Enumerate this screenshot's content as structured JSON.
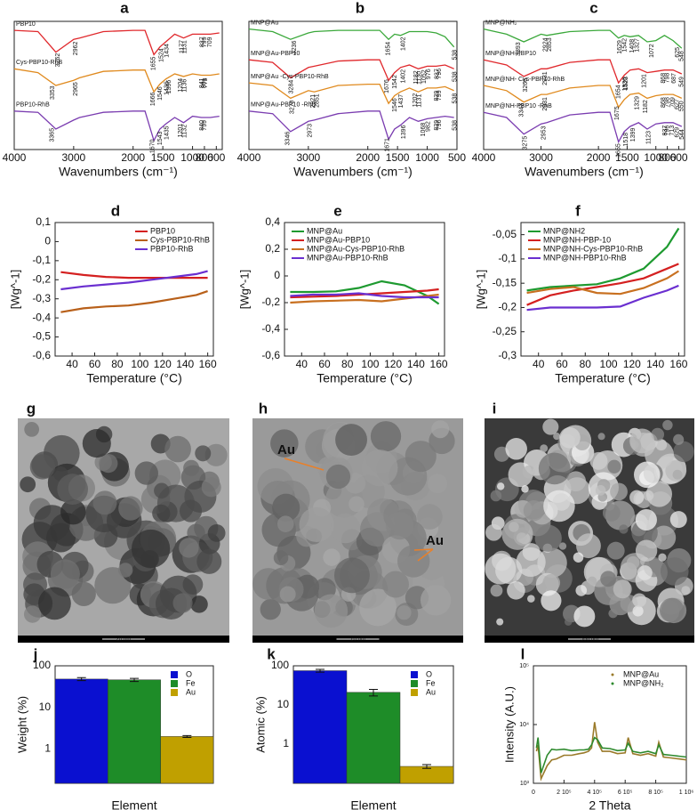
{
  "chart_data": [
    {
      "type": "spectrum",
      "label": "a",
      "xlabel": "Wavenumbers (cm⁻¹)",
      "xlim": [
        4000,
        500
      ],
      "ylim": [
        0,
        10
      ],
      "xticks": [
        4000,
        3000,
        2000,
        1500,
        1000,
        800,
        600
      ],
      "x": [
        4000,
        3600,
        3300,
        3000,
        2900,
        2500,
        2000,
        1800,
        1650,
        1550,
        1450,
        1300,
        1150,
        1000,
        850,
        700,
        550
      ],
      "series": [
        {
          "name": "PBP10",
          "color": "#e0282c",
          "values": [
            9.3,
            9.2,
            7.6,
            8.6,
            8.7,
            9.2,
            9.3,
            9.3,
            7.4,
            8.0,
            8.4,
            9.0,
            8.7,
            9.0,
            9.0,
            9.0,
            9.1
          ],
          "peaks": [
            3262,
            2962,
            1655,
            1524,
            1434,
            1177,
            1131,
            837,
            799,
            709
          ]
        },
        {
          "name": "Cys-PBP10-RhB",
          "color": "#e08a1e",
          "values": [
            6.3,
            6.0,
            5.0,
            5.4,
            5.6,
            6.1,
            6.2,
            6.2,
            4.5,
            5.1,
            5.5,
            5.9,
            5.7,
            5.9,
            5.8,
            5.8,
            5.9
          ],
          "peaks": [
            3353,
            2965,
            1666,
            1546,
            1436,
            1396,
            1204,
            1136,
            841,
            801,
            779
          ]
        },
        {
          "name": "PBP10-RhB",
          "color": "#7a3cb0",
          "values": [
            3.0,
            2.9,
            1.6,
            2.3,
            2.5,
            2.9,
            3.0,
            3.0,
            0.7,
            1.6,
            2.0,
            2.5,
            2.1,
            2.6,
            2.5,
            2.5,
            2.6
          ],
          "peaks": [
            3365,
            1670,
            1543,
            1435,
            1201,
            1132,
            840,
            799
          ]
        }
      ]
    },
    {
      "type": "spectrum",
      "label": "b",
      "xlabel": "Wavenumbers (cm⁻¹)",
      "xlim": [
        4000,
        500
      ],
      "ylim": [
        0,
        10
      ],
      "xticks": [
        4000,
        3000,
        2000,
        1500,
        1000,
        500
      ],
      "x": [
        4000,
        3600,
        3300,
        3000,
        2900,
        2500,
        2000,
        1800,
        1650,
        1550,
        1450,
        1300,
        1150,
        1000,
        850,
        700,
        550
      ],
      "series": [
        {
          "name": "MNP@Au",
          "color": "#3aa83a",
          "values": [
            9.4,
            9.2,
            8.6,
            9.1,
            9.2,
            9.3,
            9.3,
            9.3,
            8.6,
            9.0,
            8.9,
            9.2,
            9.2,
            9.2,
            9.1,
            8.8,
            8.0
          ],
          "peaks": [
            3236,
            1654,
            1402,
            538
          ]
        },
        {
          "name": "MNP@Au-PBP10",
          "color": "#e0282c",
          "values": [
            7.0,
            6.8,
            5.6,
            6.4,
            6.5,
            6.9,
            7.0,
            7.0,
            5.4,
            6.0,
            6.4,
            6.6,
            6.3,
            6.5,
            6.5,
            6.6,
            6.3
          ],
          "peaks": [
            3284,
            1676,
            1542,
            1402,
            1182,
            1130,
            1052,
            976,
            837,
            796,
            538
          ]
        },
        {
          "name": "MNP@Au -Cys-PBP10-RhB",
          "color": "#e08a1e",
          "values": [
            5.2,
            5.0,
            4.0,
            4.6,
            4.5,
            5.0,
            5.1,
            5.1,
            3.6,
            4.2,
            4.5,
            4.8,
            4.5,
            4.8,
            4.8,
            4.9,
            4.6
          ],
          "peaks": [
            3270,
            2921,
            2851,
            1546,
            1437,
            1202,
            1131,
            839,
            799,
            538
          ]
        },
        {
          "name": "MNP@Au-PBP10 -RhB",
          "color": "#7a3cb0",
          "values": [
            3.0,
            2.8,
            1.4,
            2.2,
            2.3,
            2.8,
            3.0,
            3.0,
            0.8,
            1.6,
            1.9,
            2.5,
            2.2,
            2.4,
            2.5,
            2.6,
            2.5
          ],
          "peaks": [
            3346,
            2973,
            1671,
            1396,
            1068,
            982,
            839,
            796,
            538
          ]
        }
      ]
    },
    {
      "type": "spectrum",
      "label": "c",
      "xlabel": "Wavenumbers (cm⁻¹)",
      "xlim": [
        4000,
        500
      ],
      "ylim": [
        0,
        10
      ],
      "xticks": [
        4000,
        3000,
        2000,
        1500,
        1000,
        800,
        600
      ],
      "x": [
        4000,
        3600,
        3300,
        3000,
        2900,
        2500,
        2000,
        1800,
        1650,
        1550,
        1450,
        1300,
        1150,
        1000,
        850,
        700,
        550
      ],
      "series": [
        {
          "name": "MNP@NH₂",
          "color": "#3aa83a",
          "values": [
            9.4,
            9.0,
            8.4,
            9.0,
            8.9,
            9.2,
            9.3,
            9.3,
            8.7,
            8.9,
            8.8,
            8.9,
            8.4,
            8.5,
            8.9,
            8.5,
            7.9
          ],
          "peaks": [
            3393,
            2924,
            2853,
            1629,
            1542,
            1408,
            1327,
            1072,
            625,
            548
          ]
        },
        {
          "name": "MNP@NH-PBP10",
          "color": "#e0282c",
          "values": [
            7.0,
            6.6,
            5.7,
            6.3,
            6.3,
            6.8,
            7.0,
            7.0,
            5.2,
            5.8,
            6.2,
            6.3,
            6.0,
            6.1,
            6.2,
            6.2,
            5.9
          ],
          "peaks": [
            3266,
            2931,
            1654,
            1536,
            1523,
            1201,
            868,
            798,
            687,
            549
          ]
        },
        {
          "name": "MNP@NH- Cys-PBP10-RhB",
          "color": "#e08a1e",
          "values": [
            5.0,
            4.6,
            3.7,
            4.3,
            4.3,
            4.8,
            5.0,
            5.0,
            3.3,
            3.9,
            4.3,
            4.4,
            4.0,
            4.2,
            4.3,
            4.3,
            4.0
          ],
          "peaks": [
            3343,
            2931,
            1675,
            1329,
            1182,
            868,
            798,
            709,
            627,
            550
          ]
        },
        {
          "name": "MNP@NH-PBP10 -RhB",
          "color": "#7a3cb0",
          "values": [
            2.9,
            2.5,
            1.2,
            2.0,
            2.1,
            2.7,
            2.9,
            2.9,
            0.6,
            1.4,
            1.8,
            2.1,
            1.6,
            2.0,
            2.1,
            2.1,
            1.8
          ],
          "peaks": [
            3275,
            2953,
            1655,
            1518,
            1399,
            1123,
            837,
            796,
            713,
            629,
            544
          ]
        }
      ]
    },
    {
      "type": "line",
      "label": "d",
      "xlabel": "Temperature (°C)",
      "ylabel": "[Wg^-1]",
      "legend": "upper right",
      "xlim": [
        25,
        165
      ],
      "ylim": [
        -0.6,
        0.1
      ],
      "xticks": [
        40,
        60,
        80,
        100,
        120,
        140,
        160
      ],
      "yticks": [
        {
          "value": 0.1,
          "label": "0,1"
        },
        0,
        {
          "value": -0.1,
          "label": "-0,1"
        },
        {
          "value": -0.2,
          "label": "-0,2"
        },
        {
          "value": -0.3,
          "label": "-0,3"
        },
        {
          "value": -0.4,
          "label": "-0,4"
        },
        {
          "value": -0.5,
          "label": "-0,5"
        },
        {
          "value": -0.6,
          "label": "-0,6"
        }
      ],
      "x": [
        30,
        50,
        70,
        90,
        110,
        130,
        150,
        160
      ],
      "series": [
        {
          "name": "PBP10",
          "color": "#d42020",
          "values": [
            -0.16,
            -0.175,
            -0.185,
            -0.19,
            -0.19,
            -0.19,
            -0.19,
            -0.19
          ]
        },
        {
          "name": "Cys-PBP10-RhB",
          "color": "#b8601a",
          "values": [
            -0.37,
            -0.35,
            -0.34,
            -0.335,
            -0.32,
            -0.3,
            -0.28,
            -0.26
          ]
        },
        {
          "name": "PBP10-RhB",
          "color": "#6a2fd0",
          "values": [
            -0.25,
            -0.235,
            -0.225,
            -0.215,
            -0.2,
            -0.185,
            -0.17,
            -0.155
          ]
        }
      ]
    },
    {
      "type": "line",
      "label": "e",
      "xlabel": "Temperature (°C)",
      "ylabel": "[Wg^-1]",
      "legend": "upper left",
      "xlim": [
        25,
        165
      ],
      "ylim": [
        -0.6,
        0.4
      ],
      "xticks": [
        40,
        60,
        80,
        100,
        120,
        140,
        160
      ],
      "yticks": [
        {
          "value": 0.4,
          "label": "0,4"
        },
        {
          "value": 0.2,
          "label": "0,2"
        },
        0,
        {
          "value": -0.2,
          "label": "-0,2"
        },
        {
          "value": -0.4,
          "label": "-0,4"
        },
        {
          "value": -0.6,
          "label": "-0,6"
        }
      ],
      "x": [
        30,
        50,
        70,
        90,
        110,
        130,
        150,
        160
      ],
      "series": [
        {
          "name": "MNP@Au",
          "color": "#1e9a30",
          "values": [
            -0.12,
            -0.12,
            -0.115,
            -0.09,
            -0.04,
            -0.07,
            -0.15,
            -0.21
          ]
        },
        {
          "name": "MNP@Au-PBP10",
          "color": "#d42020",
          "values": [
            -0.16,
            -0.155,
            -0.15,
            -0.14,
            -0.13,
            -0.12,
            -0.11,
            -0.1
          ]
        },
        {
          "name": "MNP@Au-Cys-PBP10-RhB",
          "color": "#c87020",
          "values": [
            -0.2,
            -0.19,
            -0.185,
            -0.18,
            -0.19,
            -0.17,
            -0.15,
            -0.14
          ]
        },
        {
          "name": "MNP@Au-PBP10-RhB",
          "color": "#6a2fd0",
          "values": [
            -0.15,
            -0.14,
            -0.14,
            -0.13,
            -0.15,
            -0.16,
            -0.16,
            -0.16
          ]
        }
      ]
    },
    {
      "type": "line",
      "label": "f",
      "xlabel": "Temperature (°C)",
      "ylabel": "[Wg^-1]",
      "legend": "upper left",
      "xlim": [
        25,
        165
      ],
      "ylim": [
        -0.3,
        -0.025
      ],
      "xticks": [
        40,
        60,
        80,
        100,
        120,
        140,
        160
      ],
      "yticks": [
        {
          "value": -0.05,
          "label": "-0,05"
        },
        {
          "value": -0.1,
          "label": "-0,1"
        },
        {
          "value": -0.15,
          "label": "-0,15"
        },
        {
          "value": -0.2,
          "label": "-0,2"
        },
        {
          "value": -0.25,
          "label": "-0,25"
        },
        {
          "value": -0.3,
          "label": "-0,3"
        }
      ],
      "x": [
        30,
        50,
        70,
        90,
        110,
        130,
        150,
        160
      ],
      "series": [
        {
          "name": "MNP@NH2",
          "color": "#1e9a30",
          "values": [
            -0.165,
            -0.158,
            -0.155,
            -0.152,
            -0.14,
            -0.12,
            -0.075,
            -0.037
          ]
        },
        {
          "name": "MNP@NH-PBP-10",
          "color": "#d42020",
          "values": [
            -0.195,
            -0.175,
            -0.165,
            -0.158,
            -0.15,
            -0.14,
            -0.12,
            -0.11
          ]
        },
        {
          "name": "MNP@NH-Cys-PBP10-RhB",
          "color": "#c87020",
          "values": [
            -0.17,
            -0.162,
            -0.158,
            -0.17,
            -0.172,
            -0.16,
            -0.14,
            -0.125
          ]
        },
        {
          "name": "MNP@NH-PBP10-RhB",
          "color": "#6a2fd0",
          "values": [
            -0.205,
            -0.2,
            -0.2,
            -0.2,
            -0.198,
            -0.18,
            -0.165,
            -0.155
          ]
        }
      ]
    },
    {
      "type": "image",
      "label": "g",
      "scale_bar": "20 nm"
    },
    {
      "type": "image",
      "label": "h",
      "scale_bar": "20 nm",
      "annotations": [
        "Au",
        "Au"
      ]
    },
    {
      "type": "image",
      "label": "i",
      "scale_bar": "500 nm"
    },
    {
      "type": "bar",
      "label": "j",
      "xlabel": "Element",
      "ylabel": "Weight (%)",
      "log_y": true,
      "ylim": [
        0.15,
        100
      ],
      "yticks": [
        1,
        10,
        100
      ],
      "categories": [
        "O",
        "Fe",
        "Au"
      ],
      "colors": [
        "#0a10d0",
        "#1e8c28",
        "#c0a000"
      ],
      "values": [
        48,
        46,
        2.0
      ],
      "errors": [
        4,
        4,
        0.1
      ]
    },
    {
      "type": "bar",
      "label": "k",
      "xlabel": "Element",
      "ylabel": "Atomic (%)",
      "log_y": true,
      "ylim": [
        0.1,
        100
      ],
      "yticks": [
        1,
        10,
        100
      ],
      "categories": [
        "O",
        "Fe",
        "Au"
      ],
      "colors": [
        "#0a10d0",
        "#1e8c28",
        "#c0a000"
      ],
      "values": [
        75,
        21,
        0.27
      ],
      "errors": [
        6,
        4,
        0.03
      ]
    },
    {
      "type": "line",
      "label": "l",
      "xlabel": "2 Theta",
      "ylabel": "Intensity (A.U.)",
      "legend": "upper right",
      "log_y": true,
      "xlim": [
        0,
        1000000
      ],
      "ylim": [
        1000,
        100000
      ],
      "xticks": [
        0,
        {
          "value": 200000,
          "label": "2 10⁵"
        },
        {
          "value": 400000,
          "label": "4 10⁵"
        },
        {
          "value": 600000,
          "label": "6 10⁵"
        },
        {
          "value": 800000,
          "label": "8 10⁵"
        },
        {
          "value": 1000000,
          "label": "1 10⁶"
        }
      ],
      "yticks": [
        {
          "value": 1000,
          "label": "10³"
        },
        {
          "value": 10000,
          "label": "10⁴"
        },
        {
          "value": 100000,
          "label": "10⁵"
        }
      ],
      "x": [
        20000,
        30000,
        50000,
        90000,
        120000,
        150000,
        200000,
        250000,
        300000,
        330000,
        360000,
        380000,
        400000,
        420000,
        450000,
        500000,
        550000,
        600000,
        620000,
        650000,
        700000,
        750000,
        800000,
        820000,
        850000,
        900000,
        950000,
        1000000
      ],
      "series": [
        {
          "name": "MNP@Au",
          "color": "#9a7a2a",
          "values": [
            3500,
            4500,
            1200,
            2000,
            2500,
            2600,
            3000,
            3000,
            3200,
            3300,
            3500,
            4000,
            11000,
            5000,
            3500,
            3500,
            3200,
            3300,
            6000,
            3200,
            3000,
            3200,
            2900,
            5000,
            2800,
            2700,
            2600,
            2500
          ]
        },
        {
          "name": "MNP@NH₂",
          "color": "#2e8a2e",
          "values": [
            4000,
            6000,
            1500,
            3000,
            3800,
            3700,
            3800,
            3600,
            3700,
            3700,
            3800,
            4500,
            6000,
            5500,
            4000,
            3900,
            3600,
            3700,
            4800,
            3500,
            3300,
            3500,
            3200,
            4500,
            3100,
            3000,
            2900,
            2800
          ]
        }
      ]
    }
  ]
}
